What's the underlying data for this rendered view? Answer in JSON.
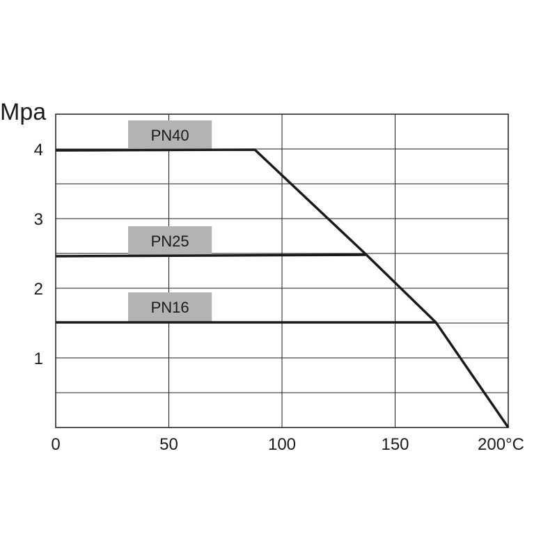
{
  "chart_data": {
    "type": "line",
    "ylabel": "Mpa",
    "x_unit": "°C",
    "xlim": [
      0,
      200
    ],
    "ylim": [
      0,
      4.5
    ],
    "x_ticks": [
      "0",
      "50",
      "100",
      "150",
      "200"
    ],
    "y_ticks": [
      "1",
      "2",
      "3",
      "4"
    ],
    "grid": true,
    "series": [
      {
        "name": "PN40",
        "points": [
          [
            0,
            3.98
          ],
          [
            88,
            3.99
          ],
          [
            137,
            2.49
          ],
          [
            168,
            1.51
          ],
          [
            200,
            0
          ]
        ]
      },
      {
        "name": "PN25",
        "points": [
          [
            0,
            2.46
          ],
          [
            137,
            2.48
          ]
        ]
      },
      {
        "name": "PN16",
        "points": [
          [
            0,
            1.51
          ],
          [
            168,
            1.51
          ]
        ]
      }
    ]
  }
}
